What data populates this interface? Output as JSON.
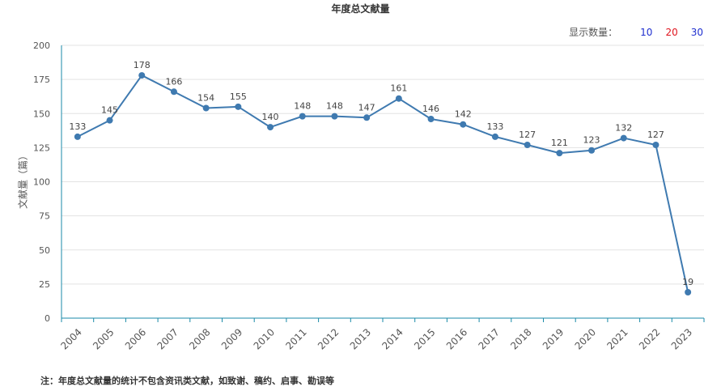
{
  "header": {
    "title": "年度总文献量",
    "display_count": {
      "label": "显示数量：",
      "options": [
        {
          "label": "10",
          "color": "#1f2fcf"
        },
        {
          "label": "20",
          "color": "#e0141e"
        },
        {
          "label": "30",
          "color": "#1f2fcf"
        }
      ]
    }
  },
  "chart_data": {
    "type": "line",
    "title": "年度总文献量",
    "xlabel": "",
    "ylabel": "文献量（篇）",
    "categories": [
      "2004",
      "2005",
      "2006",
      "2007",
      "2008",
      "2009",
      "2010",
      "2011",
      "2012",
      "2013",
      "2014",
      "2015",
      "2016",
      "2017",
      "2018",
      "2019",
      "2020",
      "2021",
      "2022",
      "2023"
    ],
    "series": [
      {
        "values": [
          133,
          145,
          178,
          166,
          154,
          155,
          140,
          148,
          148,
          147,
          161,
          146,
          142,
          133,
          127,
          121,
          123,
          132,
          127,
          19
        ]
      }
    ],
    "ylim": [
      0,
      200
    ],
    "yticks": [
      0,
      25,
      50,
      75,
      100,
      125,
      150,
      175,
      200
    ],
    "grid": true,
    "line_color": "#3f7ab0",
    "axis_color": "#1a8aa8"
  },
  "footer": {
    "note": "注：年度总文献量的统计不包含资讯类文献，如致谢、稿约、启事、勘误等"
  }
}
